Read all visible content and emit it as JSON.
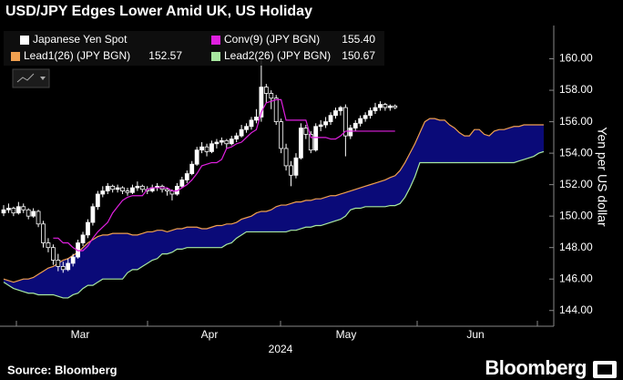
{
  "chart_data": {
    "type": "candlestick",
    "title": "USD/JPY Edges Lower Amid UK, US Holiday",
    "y_axis_label": "Yen per US dollar",
    "ylim": [
      143,
      162
    ],
    "yticks": [
      {
        "value": 144,
        "label": "144.00"
      },
      {
        "value": 146,
        "label": "146.00"
      },
      {
        "value": 148,
        "label": "148.00"
      },
      {
        "value": 150,
        "label": "150.00"
      },
      {
        "value": 152,
        "label": "152.00"
      },
      {
        "value": 154,
        "label": "154.00"
      },
      {
        "value": 156,
        "label": "156.00"
      },
      {
        "value": 158,
        "label": "158.00"
      },
      {
        "value": 160,
        "label": "160.00"
      }
    ],
    "x_labels": [
      "Mar",
      "Apr",
      "May",
      "Jun"
    ],
    "x_group_label": "2024",
    "up_color": "#ffffff",
    "down_color": "#000000",
    "cloud_color": "#0a0a78",
    "source": "Source: Bloomberg",
    "brand": "Bloomberg",
    "series": [
      {
        "name": "Japanese Yen Spot",
        "color": "#ffffff",
        "values": [
          [
            150.2,
            150.7,
            150.0,
            150.4
          ],
          [
            150.4,
            150.8,
            150.2,
            150.5
          ],
          [
            150.5,
            150.6,
            150.0,
            150.2
          ],
          [
            150.2,
            150.9,
            150.1,
            150.6
          ],
          [
            150.6,
            150.8,
            150.2,
            150.4
          ],
          [
            150.4,
            150.5,
            149.8,
            150.0
          ],
          [
            150.0,
            150.5,
            149.9,
            150.3
          ],
          [
            150.3,
            150.4,
            149.3,
            149.5
          ],
          [
            149.5,
            149.7,
            148.0,
            148.3
          ],
          [
            148.3,
            148.6,
            147.7,
            148.0
          ],
          [
            148.0,
            148.2,
            146.9,
            147.2
          ],
          [
            147.2,
            147.6,
            146.5,
            146.8
          ],
          [
            146.8,
            147.1,
            146.4,
            146.6
          ],
          [
            146.6,
            147.3,
            146.5,
            147.0
          ],
          [
            147.0,
            147.6,
            146.8,
            147.4
          ],
          [
            147.4,
            148.5,
            147.3,
            148.3
          ],
          [
            148.3,
            149.0,
            148.1,
            148.8
          ],
          [
            148.8,
            149.8,
            148.6,
            149.6
          ],
          [
            149.6,
            150.8,
            149.4,
            150.6
          ],
          [
            150.6,
            151.6,
            150.4,
            151.4
          ],
          [
            151.4,
            151.9,
            151.2,
            151.6
          ],
          [
            151.6,
            152.1,
            151.4,
            151.9
          ],
          [
            151.9,
            152.0,
            151.5,
            151.7
          ],
          [
            151.7,
            152.0,
            151.5,
            151.8
          ],
          [
            151.8,
            151.9,
            151.4,
            151.6
          ],
          [
            151.6,
            151.8,
            151.3,
            151.5
          ],
          [
            151.5,
            152.0,
            151.4,
            151.8
          ],
          [
            151.8,
            152.2,
            151.6,
            151.9
          ],
          [
            151.9,
            152.0,
            151.5,
            151.7
          ],
          [
            151.7,
            151.9,
            151.4,
            151.6
          ],
          [
            151.6,
            152.0,
            151.5,
            151.8
          ],
          [
            151.8,
            152.1,
            151.6,
            151.9
          ],
          [
            151.9,
            152.0,
            151.5,
            151.7
          ],
          [
            151.7,
            151.8,
            151.3,
            151.6
          ],
          [
            151.6,
            151.7,
            151.0,
            151.4
          ],
          [
            151.4,
            152.1,
            151.3,
            151.9
          ],
          [
            151.9,
            152.5,
            151.8,
            152.3
          ],
          [
            152.3,
            152.9,
            152.1,
            152.7
          ],
          [
            152.7,
            153.5,
            152.6,
            153.3
          ],
          [
            153.3,
            154.4,
            153.2,
            154.2
          ],
          [
            154.2,
            154.7,
            154.0,
            154.4
          ],
          [
            154.4,
            154.6,
            153.8,
            154.1
          ],
          [
            154.1,
            154.8,
            154.0,
            154.6
          ],
          [
            154.6,
            154.9,
            154.3,
            154.7
          ],
          [
            154.7,
            155.0,
            154.5,
            154.8
          ],
          [
            154.8,
            154.9,
            154.3,
            154.6
          ],
          [
            154.6,
            155.1,
            154.5,
            154.9
          ],
          [
            154.9,
            155.3,
            154.7,
            155.1
          ],
          [
            155.1,
            155.8,
            155.0,
            155.5
          ],
          [
            155.5,
            155.9,
            155.3,
            155.7
          ],
          [
            155.7,
            156.3,
            155.5,
            156.1
          ],
          [
            156.1,
            156.8,
            155.9,
            156.3
          ],
          [
            156.3,
            160.2,
            156.0,
            158.2
          ],
          [
            158.2,
            158.4,
            157.2,
            157.8
          ],
          [
            157.8,
            158.0,
            156.8,
            157.5
          ],
          [
            157.5,
            157.7,
            155.8,
            156.0
          ],
          [
            156.0,
            156.2,
            154.0,
            154.3
          ],
          [
            154.3,
            154.6,
            152.9,
            153.2
          ],
          [
            153.2,
            153.5,
            151.9,
            152.6
          ],
          [
            152.6,
            154.0,
            152.4,
            153.7
          ],
          [
            153.7,
            155.9,
            153.6,
            155.6
          ],
          [
            155.6,
            155.8,
            154.9,
            155.2
          ],
          [
            155.2,
            155.4,
            154.0,
            154.2
          ],
          [
            154.2,
            155.9,
            154.1,
            155.7
          ],
          [
            155.7,
            156.1,
            155.4,
            155.8
          ],
          [
            155.8,
            156.3,
            155.6,
            156.0
          ],
          [
            156.0,
            156.6,
            155.8,
            156.4
          ],
          [
            156.4,
            156.9,
            156.2,
            156.7
          ],
          [
            156.7,
            157.0,
            156.4,
            156.9
          ],
          [
            156.9,
            157.1,
            153.8,
            155.1
          ],
          [
            155.1,
            155.8,
            154.9,
            155.6
          ],
          [
            155.6,
            156.1,
            155.4,
            155.9
          ],
          [
            155.9,
            156.4,
            155.7,
            156.2
          ],
          [
            156.2,
            156.6,
            156.0,
            156.4
          ],
          [
            156.4,
            156.9,
            156.2,
            156.7
          ],
          [
            156.7,
            157.2,
            156.5,
            156.9
          ],
          [
            156.9,
            157.3,
            156.7,
            157.1
          ],
          [
            157.1,
            157.2,
            156.7,
            156.9
          ],
          [
            156.9,
            157.1,
            156.7,
            157.0
          ],
          [
            157.0,
            157.1,
            156.8,
            156.9
          ]
        ]
      },
      {
        "name": "Conv(9) (JPY BGN)",
        "color": "#e020e0",
        "legend_value": "155.40",
        "values": [
          null,
          null,
          null,
          null,
          null,
          null,
          null,
          null,
          null,
          null,
          148.6,
          148.6,
          148.3,
          148.3,
          148.0,
          147.8,
          147.8,
          148.1,
          148.6,
          149.0,
          149.3,
          149.6,
          150.2,
          150.6,
          151.0,
          151.2,
          151.3,
          151.3,
          151.3,
          151.7,
          151.8,
          151.8,
          151.8,
          151.8,
          151.6,
          151.6,
          151.8,
          152.0,
          152.3,
          152.7,
          153.2,
          153.3,
          153.4,
          153.4,
          153.6,
          154.3,
          154.4,
          154.6,
          154.7,
          155.0,
          155.3,
          155.5,
          156.6,
          157.2,
          157.3,
          157.4,
          157.4,
          156.1,
          156.1,
          156.1,
          156.1,
          156.1,
          155.0,
          155.0,
          155.0,
          155.0,
          154.9,
          154.9,
          155.1,
          155.4,
          155.4,
          155.4,
          155.4,
          155.4,
          155.4,
          155.4,
          155.4,
          155.4,
          155.4,
          155.4
        ]
      },
      {
        "name": "Lead1(26) (JPY BGN)",
        "color": "#f0a050",
        "legend_value": "152.57",
        "values": [
          146.0,
          145.9,
          145.8,
          145.9,
          146.0,
          146.0,
          146.1,
          146.3,
          146.5,
          146.7,
          146.8,
          147.0,
          147.2,
          147.3,
          147.5,
          147.7,
          148.0,
          148.3,
          148.5,
          148.7,
          148.8,
          148.8,
          148.9,
          148.9,
          148.9,
          148.9,
          148.8,
          148.8,
          148.9,
          149.0,
          149.0,
          149.1,
          149.1,
          149.0,
          149.1,
          149.2,
          149.2,
          149.3,
          149.3,
          149.3,
          149.2,
          149.2,
          149.3,
          149.4,
          149.4,
          149.5,
          149.5,
          149.6,
          149.8,
          149.9,
          150.0,
          150.2,
          150.3,
          150.3,
          150.4,
          150.6,
          150.7,
          150.7,
          150.8,
          150.9,
          150.9,
          151.0,
          151.0,
          151.1,
          151.1,
          151.2,
          151.3,
          151.3,
          151.4,
          151.5,
          151.6,
          151.7,
          151.8,
          151.9,
          152.0,
          152.1,
          152.2,
          152.3,
          152.45,
          152.57,
          152.9,
          153.4,
          154.0,
          154.6,
          155.3,
          156.0,
          156.2,
          156.2,
          156.1,
          156.1,
          155.8,
          155.6,
          155.3,
          155.1,
          155.1,
          155.5,
          155.5,
          155.2,
          155.1,
          155.4,
          155.5,
          155.5,
          155.6,
          155.7,
          155.7,
          155.8,
          155.8,
          155.8,
          155.8,
          155.8
        ]
      },
      {
        "name": "Lead2(26) (JPY BGN)",
        "color": "#a8e8a0",
        "legend_value": "150.67",
        "values": [
          145.8,
          145.6,
          145.4,
          145.3,
          145.2,
          145.1,
          145.1,
          145.0,
          145.0,
          145.0,
          145.0,
          144.9,
          144.8,
          144.8,
          145.0,
          145.1,
          145.4,
          145.6,
          145.6,
          145.8,
          146.0,
          146.0,
          146.0,
          146.0,
          146.0,
          146.4,
          146.6,
          146.6,
          146.8,
          147.0,
          147.2,
          147.3,
          147.6,
          147.6,
          147.7,
          147.9,
          147.9,
          148.0,
          148.0,
          148.0,
          148.0,
          148.0,
          148.0,
          148.0,
          148.0,
          148.2,
          148.3,
          148.6,
          148.8,
          149.0,
          149.0,
          149.0,
          149.0,
          149.0,
          149.0,
          149.0,
          149.0,
          149.0,
          149.1,
          149.1,
          149.2,
          149.3,
          149.3,
          149.4,
          149.4,
          149.5,
          149.6,
          149.7,
          149.8,
          150.0,
          150.4,
          150.5,
          150.5,
          150.6,
          150.6,
          150.6,
          150.6,
          150.6,
          150.67,
          150.67,
          150.8,
          151.2,
          151.8,
          152.5,
          153.4,
          153.4,
          153.4,
          153.4,
          153.4,
          153.4,
          153.4,
          153.4,
          153.4,
          153.4,
          153.4,
          153.4,
          153.4,
          153.4,
          153.4,
          153.4,
          153.4,
          153.4,
          153.4,
          153.4,
          153.5,
          153.6,
          153.7,
          153.8,
          154.0,
          154.1
        ]
      }
    ]
  }
}
